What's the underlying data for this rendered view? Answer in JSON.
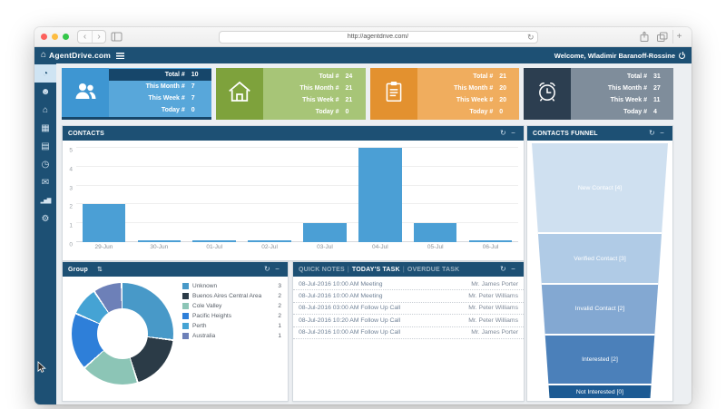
{
  "browser": {
    "url": "http://agentdrive.com/"
  },
  "header": {
    "brand": "AgentDrive.com",
    "welcome": "Welcome, Wladimir Baranoff-Rossine"
  },
  "sidebar": {
    "items": [
      {
        "name": "dashboard",
        "icon": "dashboard-icon",
        "active": true
      },
      {
        "name": "contacts",
        "icon": "contacts-icon",
        "active": false
      },
      {
        "name": "properties",
        "icon": "home-icon",
        "active": false
      },
      {
        "name": "companies",
        "icon": "building-icon",
        "active": false
      },
      {
        "name": "tasks",
        "icon": "clipboard-icon",
        "active": false
      },
      {
        "name": "reminders",
        "icon": "alarm-icon",
        "active": false
      },
      {
        "name": "mail",
        "icon": "mail-icon",
        "active": false
      },
      {
        "name": "reports",
        "icon": "chart-icon",
        "active": false
      },
      {
        "name": "settings",
        "icon": "gear-icon",
        "active": false
      }
    ]
  },
  "stat_cards": [
    {
      "name": "contacts",
      "icon": "people-icon",
      "zone_color": "#3e96d2",
      "body_color": "#58a7da",
      "highlight_row": 0,
      "highlight_color": "#16466a",
      "rows": [
        [
          "Total #",
          "10"
        ],
        [
          "This Month #",
          "7"
        ],
        [
          "This Week #",
          "7"
        ],
        [
          "Today #",
          "0"
        ]
      ]
    },
    {
      "name": "properties",
      "icon": "home-icon",
      "zone_color": "#7ea23c",
      "body_color": "#a7c577",
      "highlight_row": -1,
      "highlight_color": "",
      "rows": [
        [
          "Total #",
          "24"
        ],
        [
          "This Month #",
          "21"
        ],
        [
          "This Week #",
          "21"
        ],
        [
          "Today #",
          "0"
        ]
      ]
    },
    {
      "name": "tasks",
      "icon": "clipboard-icon",
      "zone_color": "#e3912f",
      "body_color": "#f0ad5e",
      "highlight_row": -1,
      "highlight_color": "",
      "rows": [
        [
          "Total #",
          "21"
        ],
        [
          "This Month #",
          "20"
        ],
        [
          "This Week #",
          "20"
        ],
        [
          "Today #",
          "0"
        ]
      ]
    },
    {
      "name": "reminders",
      "icon": "alarm-icon",
      "zone_color": "#2c3e50",
      "body_color": "#7f8d9b",
      "highlight_row": -1,
      "highlight_color": "",
      "rows": [
        [
          "Total #",
          "31"
        ],
        [
          "This Month #",
          "27"
        ],
        [
          "This Week #",
          "11"
        ],
        [
          "Today #",
          "4"
        ]
      ]
    }
  ],
  "panels": {
    "contacts": {
      "title": "CONTACTS"
    },
    "group": {
      "title": "Group"
    },
    "tasks": {
      "tabs": [
        "QUICK NOTES",
        "TODAY'S TASK",
        "OVERDUE TASK"
      ],
      "active_tab": 1,
      "rows": [
        [
          "08-Jul-2016 10:00 AM Meeting",
          "Mr. James Porter"
        ],
        [
          "08-Jul-2016 10:00 AM Meeting",
          "Mr. Peter Williams"
        ],
        [
          "08-Jul-2016 03:00 AM Follow Up Call",
          "Mr. Peter Williams"
        ],
        [
          "08-Jul-2016 10:20 AM Follow Up Call",
          "Mr. Peter Williams"
        ],
        [
          "08-Jul-2016 10:00 AM Follow Up Call",
          "Mr. James Porter"
        ]
      ]
    },
    "funnel": {
      "title": "CONTACTS FUNNEL"
    }
  },
  "chart_data": [
    {
      "type": "bar",
      "title": "CONTACTS",
      "categories": [
        "29-Jun",
        "30-Jun",
        "01-Jul",
        "02-Jul",
        "03-Jul",
        "04-Jul",
        "05-Jul",
        "06-Jul"
      ],
      "values": [
        2,
        0,
        0,
        0,
        1,
        5,
        1,
        0
      ],
      "xlabel": "",
      "ylabel": "",
      "ylim": [
        0,
        5
      ],
      "yticks": [
        0,
        1,
        2,
        3,
        4,
        5
      ],
      "bar_color": "#4b9fd5",
      "grid": true,
      "legend": "none"
    },
    {
      "type": "pie",
      "title": "Group",
      "hole": 0.5,
      "labels": [
        "Unknown",
        "Buenos Aires Central Area",
        "Cole Valley",
        "Pacific Heights",
        "Perth",
        "Australia"
      ],
      "values": [
        3,
        2,
        2,
        2,
        1,
        1
      ],
      "colors": [
        "#4899c8",
        "#2b3b47",
        "#8cc5b6",
        "#2e7fd9",
        "#45a3d4",
        "#6d80b8"
      ],
      "legend": "right"
    },
    {
      "type": "funnel",
      "title": "CONTACTS FUNNEL",
      "stages": [
        {
          "label": "New Contact [4]",
          "value": 4,
          "color": "#cfe0f0"
        },
        {
          "label": "Verified Contact [3]",
          "value": 3,
          "color": "#b0cbe6"
        },
        {
          "label": "Invalid Contact [2]",
          "value": 2,
          "color": "#83a8d2"
        },
        {
          "label": "Interested [2]",
          "value": 2,
          "color": "#4b80ba"
        },
        {
          "label": "Not Interested [0]",
          "value": 0,
          "color": "#1c5a93"
        }
      ]
    }
  ]
}
